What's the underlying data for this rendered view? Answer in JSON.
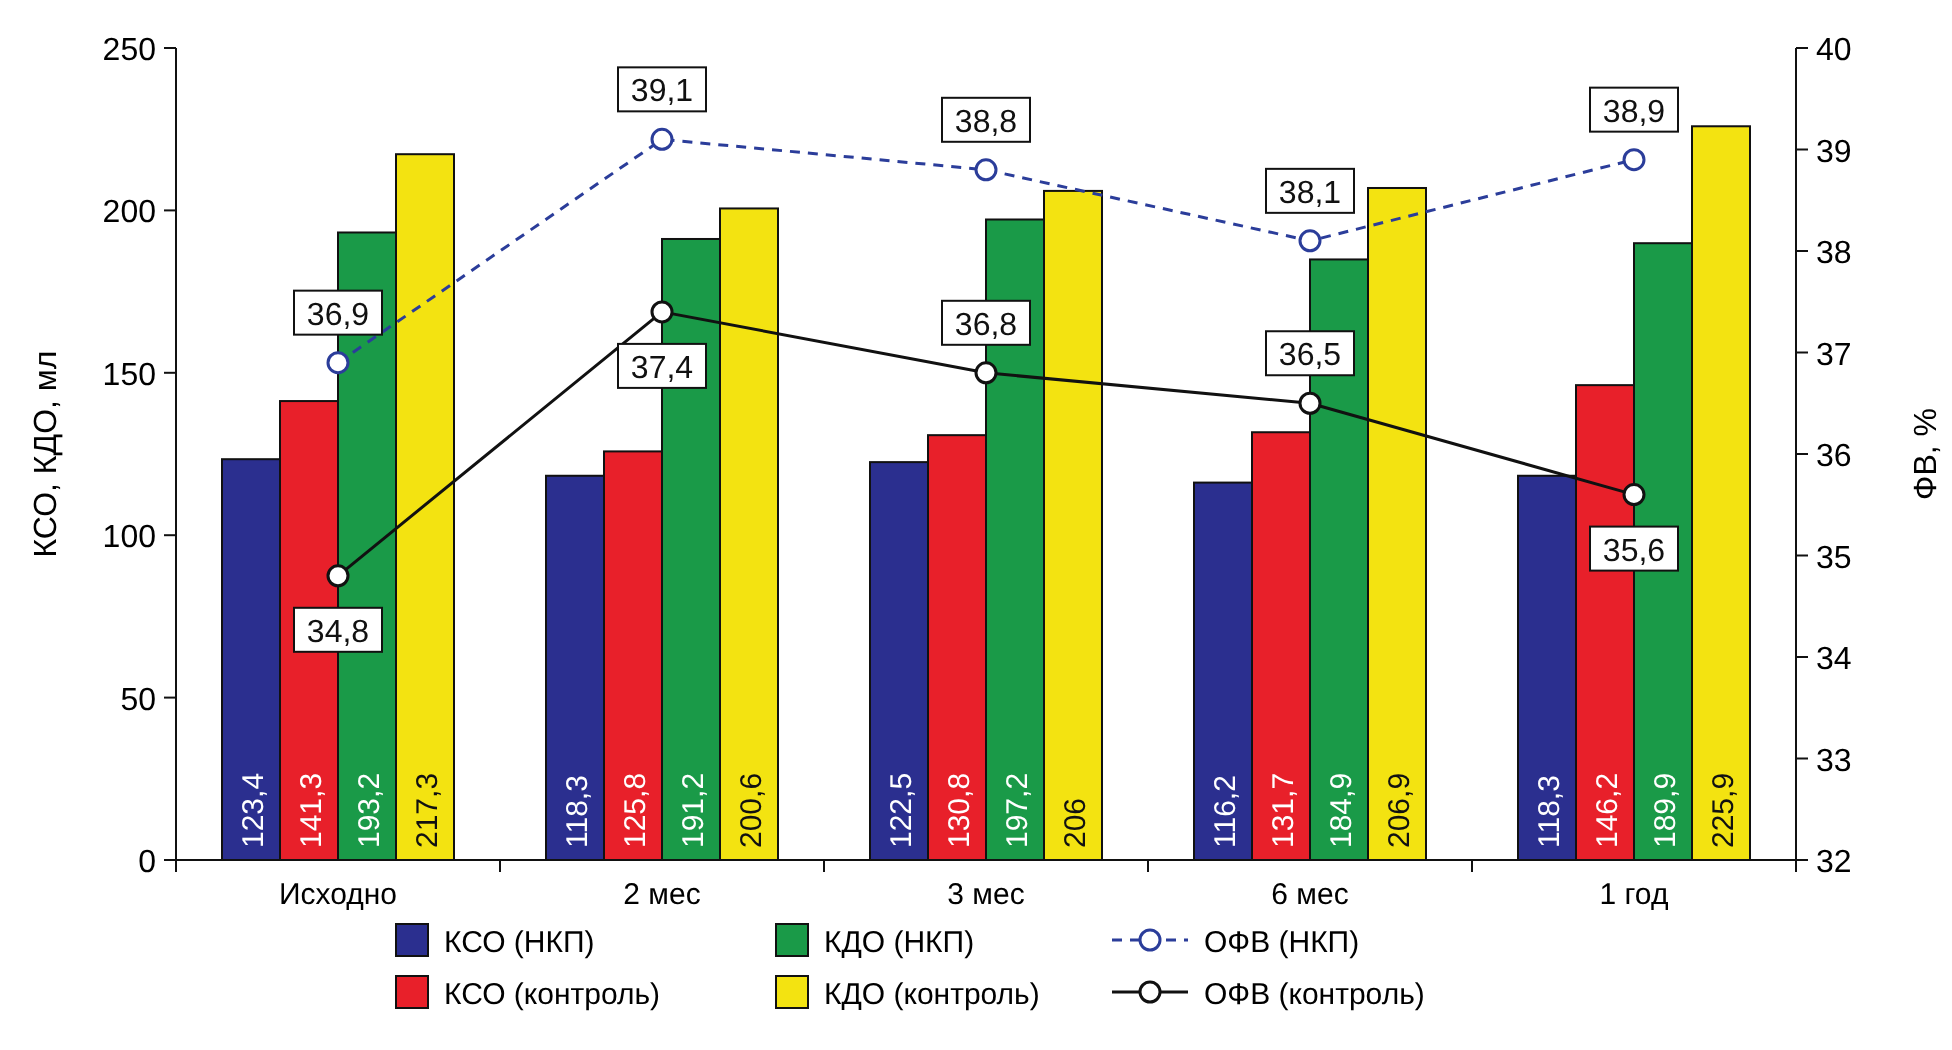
{
  "chart_data": {
    "type": "bar",
    "ylabel": "КСО, КДО, мл",
    "y2label": "ФВ, %",
    "categories": [
      "Исходно",
      "2 мес",
      "3 мес",
      "6 мес",
      "1 год"
    ],
    "series": [
      {
        "name": "КСО (НКП)",
        "color": "#2b2f8f",
        "values": [
          123.4,
          118.3,
          122.5,
          116.2,
          118.3
        ],
        "value_labels": [
          "123,4",
          "118,3",
          "122,5",
          "116,2",
          "118,3"
        ]
      },
      {
        "name": "КСО (контроль)",
        "color": "#e8202a",
        "values": [
          141.3,
          125.8,
          130.8,
          131.7,
          146.2
        ],
        "value_labels": [
          "141,3",
          "125,8",
          "130,8",
          "131,7",
          "146,2"
        ]
      },
      {
        "name": "КДО (НКП)",
        "color": "#1a9a48",
        "values": [
          193.2,
          191.2,
          197.2,
          184.9,
          189.9
        ],
        "value_labels": [
          "193,2",
          "191,2",
          "197,2",
          "184,9",
          "189,9"
        ]
      },
      {
        "name": "КДО (контроль)",
        "color": "#f3e311",
        "values": [
          217.3,
          200.6,
          206,
          206.9,
          225.9
        ],
        "value_labels": [
          "217,3",
          "200,6",
          "206",
          "206,9",
          "225,9"
        ]
      },
      {
        "name": "ОФВ (НКП)",
        "type": "line",
        "axis": "y2",
        "color": "#2b3d9a",
        "line_style": "dashed",
        "values": [
          36.9,
          39.1,
          38.8,
          38.1,
          38.9
        ],
        "value_labels": [
          "36,9",
          "39,1",
          "38,8",
          "38,1",
          "38,9"
        ]
      },
      {
        "name": "ОФВ (контроль)",
        "type": "line",
        "axis": "y2",
        "color": "#111111",
        "line_style": "solid",
        "values": [
          34.8,
          37.4,
          36.8,
          36.5,
          35.6
        ],
        "value_labels": [
          "34,8",
          "37,4",
          "36,8",
          "36,5",
          "35,6"
        ]
      }
    ],
    "ylim": [
      0,
      250
    ],
    "yticks": [
      0,
      50,
      100,
      150,
      200,
      250
    ],
    "y2lim": [
      32,
      40
    ],
    "y2ticks": [
      32,
      33,
      34,
      35,
      36,
      37,
      38,
      39,
      40
    ],
    "marker": "circle",
    "legend": "bottom",
    "grid": false
  }
}
